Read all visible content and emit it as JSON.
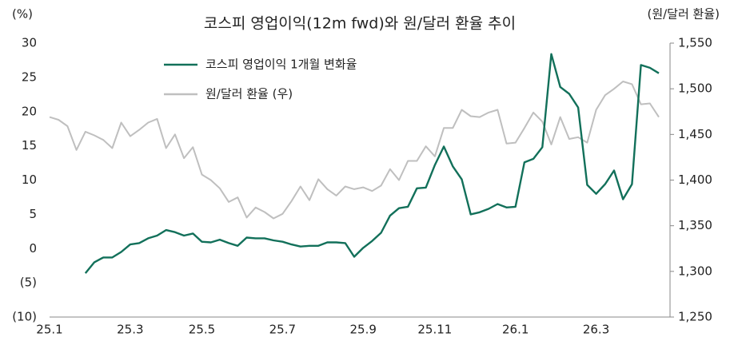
{
  "chart_data": {
    "type": "line",
    "title": "코스피 영업이익(12m fwd)와 원/달러 환율 추이",
    "y_label": "(%)",
    "y2_label": "(원/달러 환율)",
    "categories": [
      "25.1",
      null,
      null,
      null,
      null,
      null,
      null,
      null,
      null,
      "25.3",
      null,
      null,
      null,
      null,
      null,
      null,
      null,
      "25.5",
      null,
      null,
      null,
      null,
      null,
      null,
      null,
      null,
      "25.7",
      null,
      null,
      null,
      null,
      null,
      null,
      null,
      null,
      "25.9",
      null,
      null,
      null,
      null,
      null,
      null,
      null,
      "25.11",
      null,
      null,
      null,
      null,
      null,
      null,
      null,
      null,
      "26.1",
      null,
      null,
      null,
      null,
      null,
      null,
      null,
      null,
      "26.3",
      null,
      null,
      null,
      null,
      null,
      null,
      null
    ],
    "series": [
      {
        "name": "코스피 영업이익 1개월 변화율",
        "color": "#12705a",
        "axis": "y",
        "values": [
          null,
          null,
          null,
          null,
          -3.6,
          -2.0,
          -1.3,
          -1.3,
          -0.5,
          0.6,
          0.8,
          1.5,
          1.9,
          2.7,
          2.4,
          1.9,
          2.2,
          1.0,
          0.9,
          1.3,
          0.8,
          0.4,
          1.6,
          1.5,
          1.5,
          1.2,
          1.0,
          0.6,
          0.3,
          0.4,
          0.4,
          0.9,
          0.9,
          0.8,
          -1.2,
          0.1,
          1.1,
          2.3,
          4.8,
          5.9,
          6.1,
          8.8,
          8.9,
          12.2,
          14.9,
          12.0,
          10.1,
          5.0,
          5.3,
          5.8,
          6.5,
          6.0,
          6.1,
          12.6,
          13.1,
          14.8,
          28.4,
          23.6,
          22.6,
          20.6,
          9.3,
          8.0,
          9.4,
          11.4,
          7.2,
          9.4,
          26.8,
          26.4,
          25.6
        ]
      },
      {
        "name": "원/달러 환율 (우)",
        "color": "#bfbfbf",
        "axis": "y2",
        "values": [
          1469,
          1466,
          1459,
          1433,
          1453,
          1449,
          1444,
          1435,
          1463,
          1448,
          1455,
          1463,
          1467,
          1435,
          1450,
          1424,
          1436,
          1406,
          1400,
          1391,
          1376,
          1381,
          1359,
          1370,
          1365,
          1358,
          1363,
          1377,
          1393,
          1378,
          1401,
          1390,
          1383,
          1393,
          1390,
          1392,
          1388,
          1394,
          1412,
          1400,
          1421,
          1421,
          1437,
          1426,
          1457,
          1457,
          1477,
          1470,
          1469,
          1474,
          1477,
          1440,
          1441,
          1457,
          1474,
          1464,
          1439,
          1469,
          1445,
          1447,
          1441,
          1477,
          1493,
          1500,
          1508,
          1505,
          1483,
          1484,
          1469
        ]
      }
    ],
    "ylim": [
      -10,
      30
    ],
    "yticks": [
      {
        "value": -10,
        "label": "(10)"
      },
      {
        "value": -5,
        "label": "(5)"
      },
      0,
      5,
      10,
      15,
      20,
      25,
      30
    ],
    "y2lim": [
      1250,
      1550
    ],
    "y2ticks": [
      {
        "value": 1250,
        "label": "1,250"
      },
      {
        "value": 1300,
        "label": "1,300"
      },
      {
        "value": 1350,
        "label": "1,350"
      },
      {
        "value": 1400,
        "label": "1,400"
      },
      {
        "value": 1450,
        "label": "1,450"
      },
      {
        "value": 1500,
        "label": "1,500"
      },
      {
        "value": 1550,
        "label": "1,550"
      }
    ]
  }
}
